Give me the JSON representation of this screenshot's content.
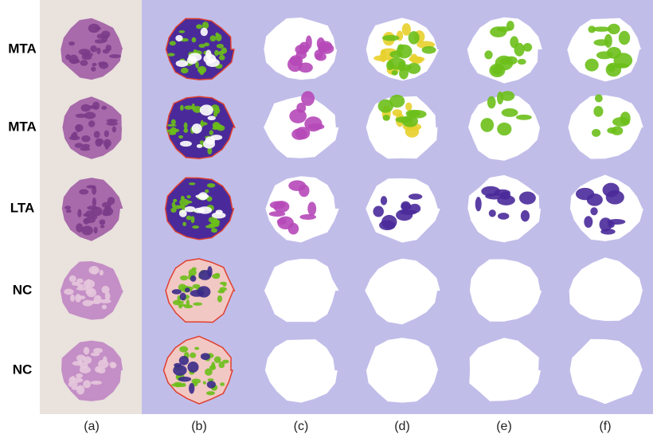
{
  "row_labels": [
    "MTA",
    "MTA",
    "LTA",
    "NC",
    "NC"
  ],
  "column_labels": [
    "(a)",
    "(b)",
    "(c)",
    "(d)",
    "(e)",
    "(f)"
  ]
}
